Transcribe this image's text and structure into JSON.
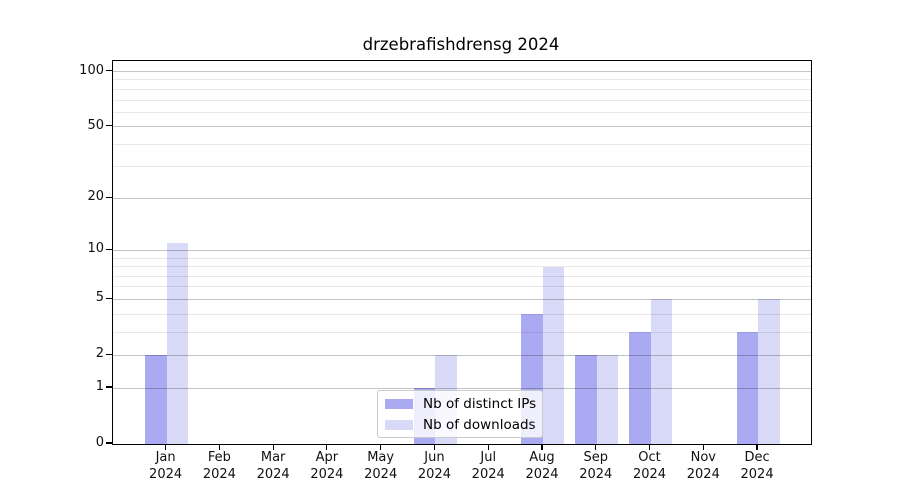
{
  "chart_data": {
    "type": "bar",
    "title": "drzebrafishdrensg 2024",
    "categories": [
      {
        "month": "Jan",
        "year": "2024"
      },
      {
        "month": "Feb",
        "year": "2024"
      },
      {
        "month": "Mar",
        "year": "2024"
      },
      {
        "month": "Apr",
        "year": "2024"
      },
      {
        "month": "May",
        "year": "2024"
      },
      {
        "month": "Jun",
        "year": "2024"
      },
      {
        "month": "Jul",
        "year": "2024"
      },
      {
        "month": "Aug",
        "year": "2024"
      },
      {
        "month": "Sep",
        "year": "2024"
      },
      {
        "month": "Oct",
        "year": "2024"
      },
      {
        "month": "Nov",
        "year": "2024"
      },
      {
        "month": "Dec",
        "year": "2024"
      }
    ],
    "series": [
      {
        "name": "Nb of distinct IPs",
        "color": "#aaaaf3",
        "values": [
          2,
          0,
          0,
          0,
          0,
          1,
          0,
          4,
          2,
          3,
          0,
          3
        ]
      },
      {
        "name": "Nb of downloads",
        "color": "#d9d9f8",
        "values": [
          11,
          0,
          0,
          0,
          0,
          2,
          0,
          8,
          2,
          5,
          0,
          5
        ]
      }
    ],
    "y_axis": {
      "scale": "log1p",
      "ticks": [
        0,
        1,
        2,
        5,
        10,
        20,
        50,
        100
      ],
      "minor_ticks": [
        3,
        4,
        6,
        7,
        8,
        9,
        30,
        40,
        60,
        70,
        80,
        90
      ],
      "ymax": 115
    },
    "x_axis": {
      "label_lines": 2
    },
    "legend": {
      "position": "lower center",
      "labels": [
        "Nb of distinct IPs",
        "Nb of downloads"
      ]
    },
    "grid": {
      "major": true,
      "minor": true
    }
  },
  "colors": {
    "bar_distinct_ips": "#aaaaf3",
    "bar_downloads": "#d9d9f8",
    "grid_major": "rgba(0,0,0,0.235)",
    "grid_minor": "rgba(0,0,0,0.09)",
    "spine": "#000000",
    "legend_border": "#cbcbcb",
    "text": "#111111"
  }
}
